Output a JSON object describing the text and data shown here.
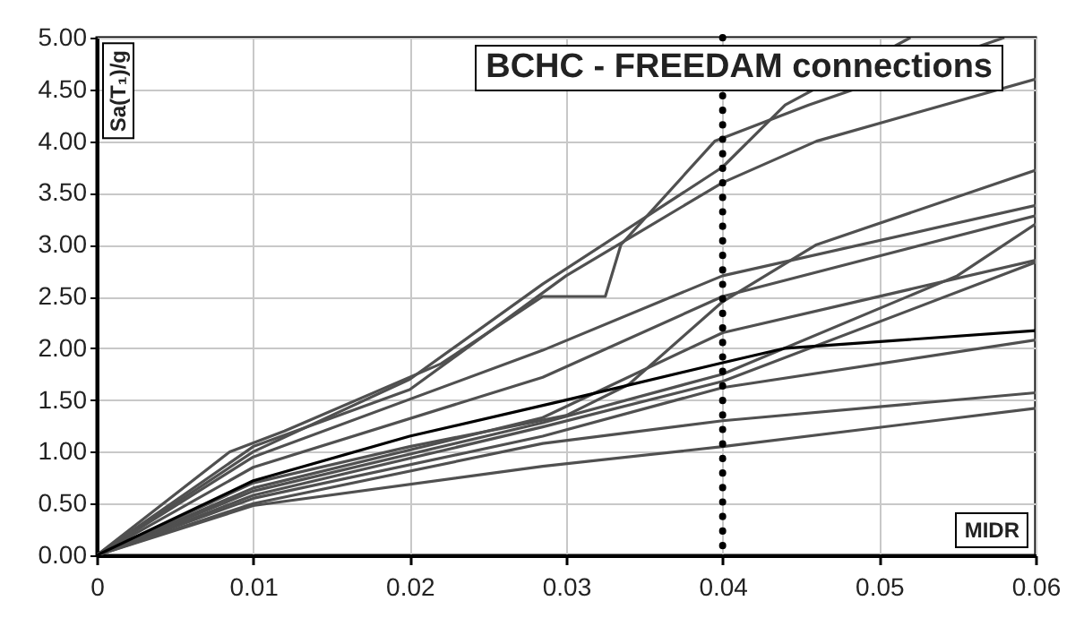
{
  "chart_data": {
    "type": "line",
    "title": "BCHC - FREEDAM connections",
    "xlabel": "MIDR",
    "ylabel": "Sa(T₁)/g",
    "xlim": [
      0,
      0.06
    ],
    "xticks": [
      0,
      0.01,
      0.02,
      0.03,
      0.04,
      0.05,
      0.06
    ],
    "ylim": [
      0,
      5
    ],
    "yticks": [
      {
        "value": 0,
        "label": "0.00"
      },
      {
        "value": 0.5,
        "label": "0.50"
      },
      {
        "value": 1,
        "label": "1.00"
      },
      {
        "value": 1.5,
        "label": "1.50"
      },
      {
        "value": 2,
        "label": "2.00"
      },
      {
        "value": 2.5,
        "label": "2.50"
      },
      {
        "value": 3,
        "label": "3.00"
      },
      {
        "value": 3.5,
        "label": "3.50"
      },
      {
        "value": 4,
        "label": "4.00"
      },
      {
        "value": 4.5,
        "label": "4.50"
      },
      {
        "value": 5,
        "label": "5.00"
      }
    ],
    "grid": true,
    "marker": "none",
    "line_style": "solid",
    "ref_lines": [
      {
        "axis": "x",
        "value": 0.04,
        "color": "#000000",
        "line_style": "dotted"
      }
    ],
    "series": [
      {
        "color": "#505050",
        "x": [
          0,
          0.0085,
          0.012,
          0.022,
          0.0285,
          0.0325,
          0.0335,
          0.0395,
          0.0455,
          0.058
        ],
        "values": [
          0,
          1.0,
          1.2,
          1.85,
          2.5,
          2.5,
          3.0,
          4.0,
          4.35,
          5.0
        ]
      },
      {
        "color": "#505050",
        "x": [
          0,
          0.01,
          0.02,
          0.0285,
          0.04,
          0.044,
          0.052
        ],
        "values": [
          0,
          1.0,
          1.7,
          2.62,
          3.75,
          4.35,
          5.0
        ]
      },
      {
        "color": "#505050",
        "x": [
          0,
          0.01,
          0.02,
          0.03,
          0.04,
          0.046,
          0.06
        ],
        "values": [
          0,
          1.05,
          1.6,
          2.7,
          3.6,
          4.0,
          4.6
        ]
      },
      {
        "color": "#505050",
        "x": [
          0,
          0.01,
          0.0285,
          0.04,
          0.06
        ],
        "values": [
          0,
          0.95,
          1.98,
          2.7,
          3.38
        ]
      },
      {
        "color": "#505050",
        "x": [
          0,
          0.01,
          0.0285,
          0.04,
          0.06
        ],
        "values": [
          0,
          0.85,
          1.72,
          2.5,
          3.28
        ]
      },
      {
        "color": "#505050",
        "x": [
          0,
          0.01,
          0.02,
          0.03,
          0.034,
          0.04,
          0.046,
          0.06
        ],
        "values": [
          0,
          0.7,
          1.05,
          1.35,
          1.65,
          2.45,
          3.0,
          3.72
        ]
      },
      {
        "color": "#505050",
        "x": [
          0,
          0.01,
          0.0285,
          0.04,
          0.06
        ],
        "values": [
          0,
          0.65,
          1.33,
          2.15,
          2.85
        ]
      },
      {
        "color": "#505050",
        "x": [
          0,
          0.01,
          0.0285,
          0.04,
          0.055,
          0.06
        ],
        "values": [
          0,
          0.62,
          1.28,
          1.75,
          2.7,
          3.2
        ]
      },
      {
        "color": "#505050",
        "x": [
          0,
          0.01,
          0.0285,
          0.04,
          0.06
        ],
        "values": [
          0,
          0.58,
          1.24,
          1.68,
          2.83
        ]
      },
      {
        "color": "#505050",
        "x": [
          0,
          0.01,
          0.0285,
          0.04,
          0.06
        ],
        "values": [
          0,
          0.55,
          1.15,
          1.62,
          2.08
        ]
      },
      {
        "color": "#505050",
        "x": [
          0,
          0.01,
          0.0285,
          0.04,
          0.06
        ],
        "values": [
          0,
          0.5,
          1.08,
          1.3,
          1.57
        ]
      },
      {
        "color": "#505050",
        "x": [
          0,
          0.01,
          0.0285,
          0.04,
          0.06
        ],
        "values": [
          0,
          0.48,
          0.86,
          1.05,
          1.42
        ]
      },
      {
        "color": "#000000",
        "x": [
          0,
          0.01,
          0.02,
          0.03,
          0.04,
          0.044,
          0.06
        ],
        "values": [
          0,
          0.72,
          1.15,
          1.5,
          1.86,
          2.0,
          2.17
        ]
      }
    ]
  }
}
